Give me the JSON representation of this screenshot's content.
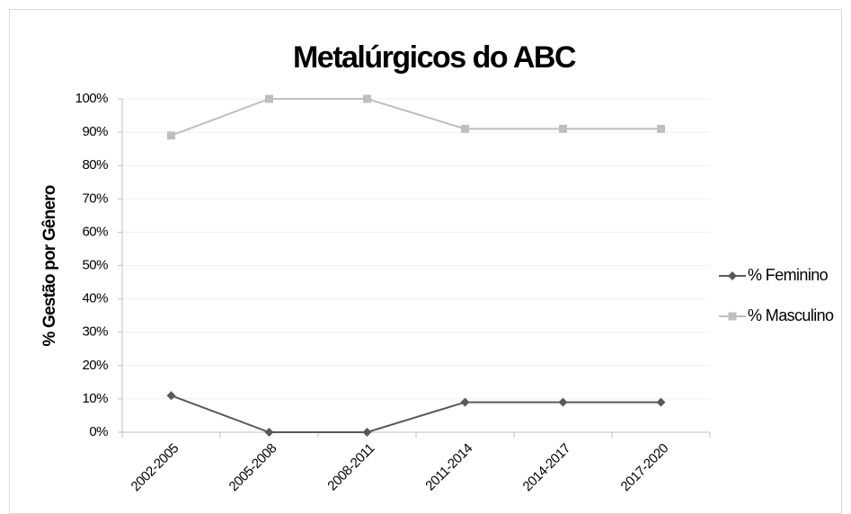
{
  "chart_data": {
    "type": "line",
    "title": "Metalúrgicos do ABC",
    "y_label": "% Gestão por Gênero",
    "categories": [
      "2002-2005",
      "2005-2008",
      "2008-2011",
      "2011-2014",
      "2014-2017",
      "2017-2020"
    ],
    "series": [
      {
        "name": "% Feminino",
        "color": "#595959",
        "marker": "diamond",
        "values": [
          11,
          0,
          0,
          9,
          9,
          9
        ]
      },
      {
        "name": "% Masculino",
        "color": "#bfbfbf",
        "marker": "square",
        "values": [
          89,
          100,
          100,
          91,
          91,
          91
        ]
      }
    ],
    "ylim": [
      0,
      100
    ],
    "yticks": [
      {
        "value": 0,
        "label": "0%"
      },
      {
        "value": 10,
        "label": "10%"
      },
      {
        "value": 20,
        "label": "20%"
      },
      {
        "value": 30,
        "label": "30%"
      },
      {
        "value": 40,
        "label": "40%"
      },
      {
        "value": 50,
        "label": "50%"
      },
      {
        "value": 60,
        "label": "60%"
      },
      {
        "value": 70,
        "label": "70%"
      },
      {
        "value": 80,
        "label": "80%"
      },
      {
        "value": 90,
        "label": "90%"
      },
      {
        "value": 100,
        "label": "100%"
      }
    ],
    "grid": true,
    "legend": "right"
  }
}
